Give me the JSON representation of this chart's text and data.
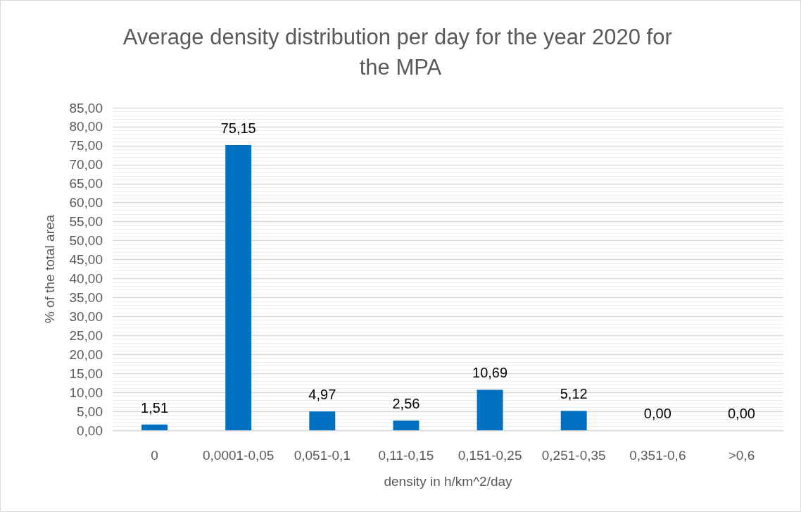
{
  "chart_data": {
    "type": "bar",
    "title": "Average density distribution per day for the year 2020 for the MPA",
    "xlabel": "density in h/km^2/day",
    "ylabel": "% of the total area",
    "categories": [
      "0",
      "0,0001-0,05",
      "0,051-0,1",
      "0,11-0,15",
      "0,151-0,25",
      "0,251-0,35",
      "0,351-0,6",
      ">0,6"
    ],
    "values": [
      1.51,
      75.15,
      4.97,
      2.56,
      10.69,
      5.12,
      0,
      0
    ],
    "value_labels": [
      "1,51",
      "75,15",
      "4,97",
      "2,56",
      "10,69",
      "5,12",
      "0,00",
      "0,00"
    ],
    "color": "#0070c0",
    "ylim": [
      0,
      85
    ],
    "yticks": [
      {
        "value": 0,
        "label": "0,00"
      },
      {
        "value": 5,
        "label": "5,00"
      },
      {
        "value": 10,
        "label": "10,00"
      },
      {
        "value": 15,
        "label": "15,00"
      },
      {
        "value": 20,
        "label": "20,00"
      },
      {
        "value": 25,
        "label": "25,00"
      },
      {
        "value": 30,
        "label": "30,00"
      },
      {
        "value": 35,
        "label": "35,00"
      },
      {
        "value": 40,
        "label": "40,00"
      },
      {
        "value": 45,
        "label": "45,00"
      },
      {
        "value": 50,
        "label": "50,00"
      },
      {
        "value": 55,
        "label": "55,00"
      },
      {
        "value": 60,
        "label": "60,00"
      },
      {
        "value": 65,
        "label": "65,00"
      },
      {
        "value": 70,
        "label": "70,00"
      },
      {
        "value": 75,
        "label": "75,00"
      },
      {
        "value": 80,
        "label": "80,00"
      },
      {
        "value": 85,
        "label": "85,00"
      }
    ],
    "grid": "y"
  }
}
